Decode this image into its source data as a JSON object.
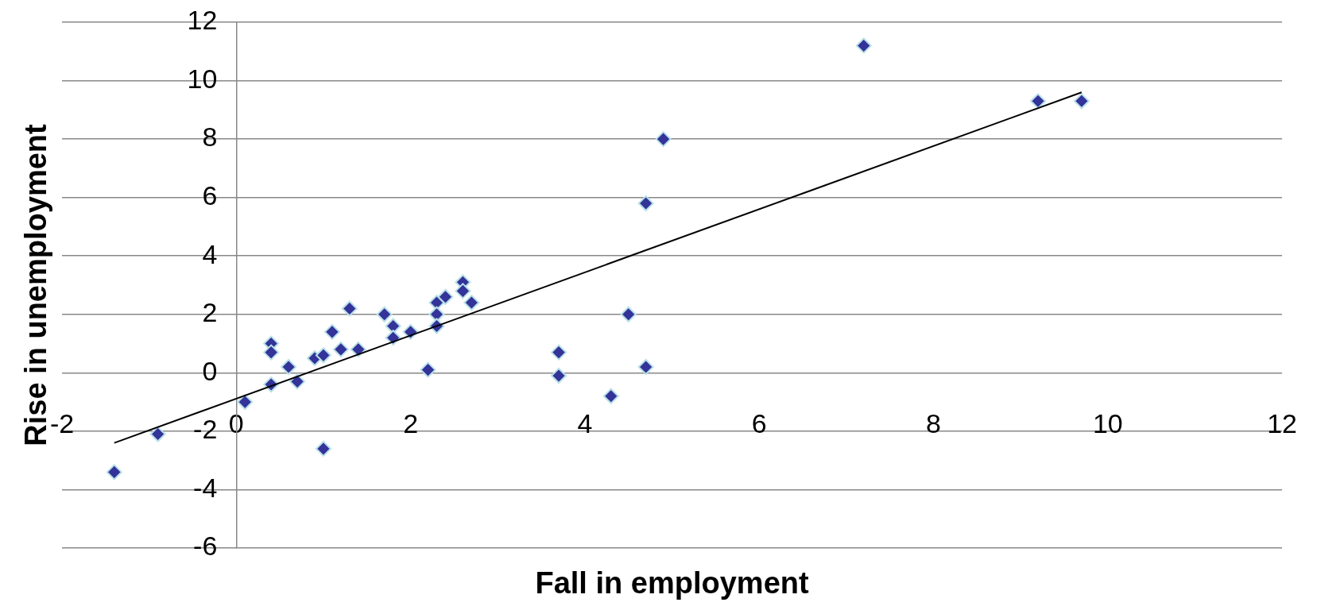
{
  "chart_data": {
    "type": "scatter",
    "xlabel": "Fall in employment",
    "ylabel": "Rise in unemployment",
    "xlim": [
      -2,
      12
    ],
    "xticks": [
      -2,
      0,
      2,
      4,
      6,
      8,
      10,
      12
    ],
    "ylim": [
      -6,
      12
    ],
    "yticks": [
      -6,
      -4,
      -2,
      0,
      2,
      4,
      6,
      8,
      10,
      12
    ],
    "grid": "y",
    "legend": false,
    "marker": "diamond",
    "series": [
      {
        "color": "#333399",
        "x": [
          -1.4,
          -0.9,
          0.1,
          0.4,
          0.4,
          0.4,
          0.6,
          0.7,
          0.9,
          1.0,
          1.0,
          1.1,
          1.2,
          1.3,
          1.4,
          1.7,
          1.8,
          1.8,
          2.0,
          2.2,
          2.3,
          2.3,
          2.3,
          2.4,
          2.6,
          2.6,
          2.7,
          3.7,
          3.7,
          4.3,
          4.5,
          4.7,
          4.7,
          4.9,
          7.2,
          9.2,
          9.7
        ],
        "values": [
          -3.4,
          -2.1,
          -1.0,
          1.0,
          0.7,
          -0.4,
          0.2,
          -0.3,
          0.5,
          0.6,
          -2.6,
          1.4,
          0.8,
          2.2,
          0.8,
          2.0,
          1.6,
          1.2,
          1.4,
          0.1,
          2.4,
          2.0,
          1.6,
          2.6,
          3.1,
          2.8,
          2.4,
          0.7,
          -0.1,
          -0.8,
          2.0,
          5.8,
          0.2,
          8.0,
          11.2,
          9.3,
          9.3
        ]
      },
      {
        "type": "line",
        "color": "#000000",
        "marker": "none",
        "x": [
          -1.4,
          9.7
        ],
        "values": [
          -2.4,
          9.6
        ]
      }
    ]
  }
}
